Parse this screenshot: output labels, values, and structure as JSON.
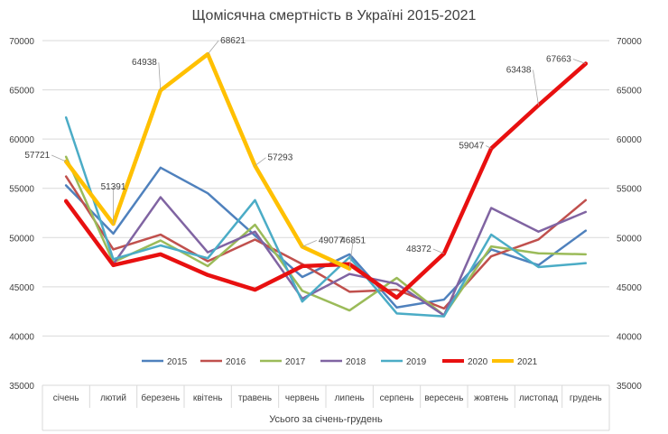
{
  "chart_data": {
    "type": "line",
    "title": "Щомісячна смертність в Україні 2015-2021",
    "xlabel": "Усього за січень-грудень",
    "categories": [
      "січень",
      "лютий",
      "березень",
      "квітень",
      "травень",
      "червень",
      "липень",
      "серпень",
      "вересень",
      "жовтень",
      "листопад",
      "грудень"
    ],
    "ylim": [
      35000,
      70000
    ],
    "yticks": [
      35000,
      40000,
      45000,
      50000,
      55000,
      60000,
      65000,
      70000
    ],
    "secondary_axis": true,
    "grid": true,
    "legend_position": "bottom",
    "series": [
      {
        "name": "2015",
        "color": "#4F81BD",
        "values": [
          55300,
          50400,
          57100,
          54500,
          50200,
          46000,
          48300,
          42900,
          43700,
          48800,
          47200,
          50700
        ]
      },
      {
        "name": "2016",
        "color": "#C0504D",
        "values": [
          56200,
          48800,
          50300,
          47600,
          49800,
          47300,
          44500,
          44700,
          42800,
          48100,
          49800,
          53800
        ]
      },
      {
        "name": "2017",
        "color": "#9BBB59",
        "values": [
          58200,
          47500,
          49700,
          47100,
          51300,
          44600,
          42600,
          45900,
          42100,
          49100,
          48400,
          48300
        ]
      },
      {
        "name": "2018",
        "color": "#8064A2",
        "values": [
          53800,
          47300,
          54100,
          48500,
          50600,
          43800,
          46300,
          45300,
          42100,
          53000,
          50600,
          52600
        ]
      },
      {
        "name": "2019",
        "color": "#4BACC6",
        "values": [
          62200,
          47800,
          49200,
          47900,
          53800,
          43500,
          48000,
          42300,
          42000,
          50300,
          47000,
          47400
        ]
      },
      {
        "name": "2020",
        "color": "#E81010",
        "thick": true,
        "values": [
          53700,
          47200,
          48300,
          46200,
          44700,
          47100,
          47300,
          43900,
          48372,
          59047,
          63438,
          67663
        ],
        "labels": [
          null,
          null,
          null,
          null,
          null,
          null,
          null,
          null,
          "48372",
          "59047",
          "63438",
          "67663"
        ]
      },
      {
        "name": "2021",
        "color": "#FFC000",
        "thick": true,
        "values": [
          57721,
          51391,
          64938,
          68621,
          57293,
          49077,
          46851,
          null,
          null,
          null,
          null,
          null
        ],
        "labels": [
          "57721",
          "51391",
          "64938",
          "68621",
          "57293",
          "49077",
          "46851",
          null,
          null,
          null,
          null,
          null
        ]
      }
    ]
  }
}
